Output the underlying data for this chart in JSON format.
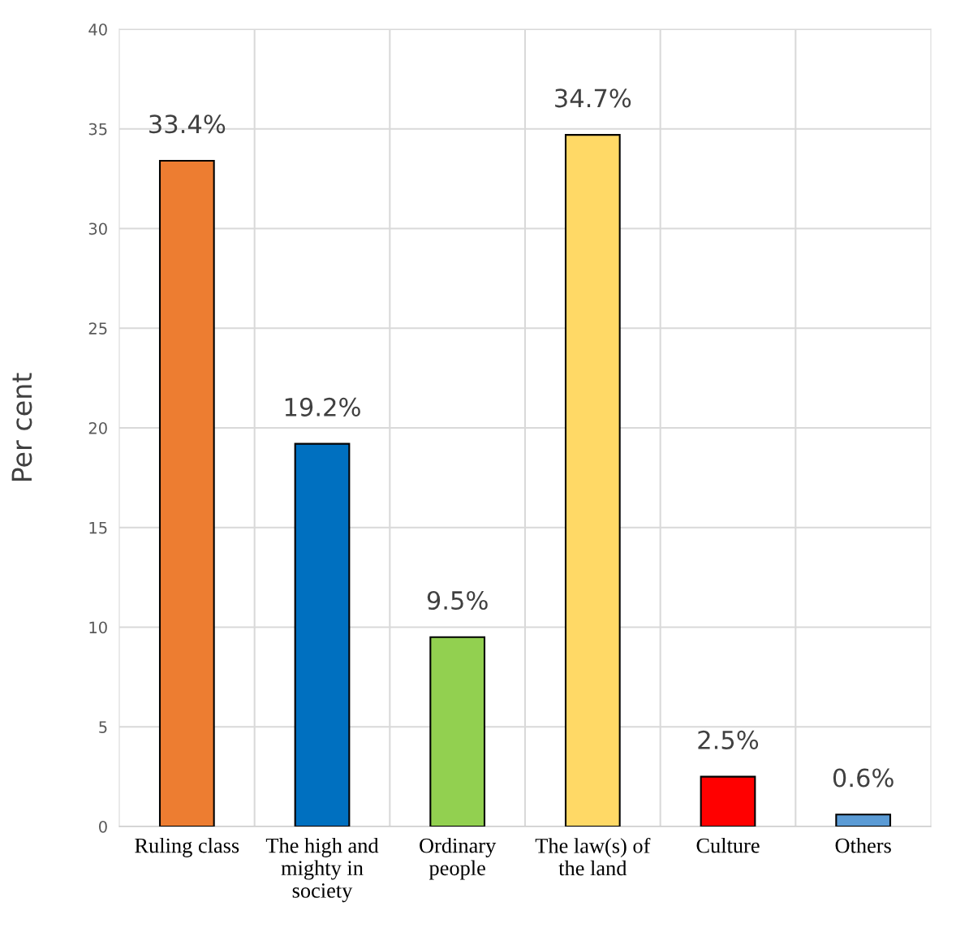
{
  "chart_data": {
    "type": "bar",
    "ylabel": "Per cent",
    "categories": [
      "Ruling class",
      "The high and\nmighty in\nsociety",
      "Ordinary\npeople",
      "The law(s) of\nthe land",
      "Culture",
      "Others"
    ],
    "values": [
      33.4,
      19.2,
      9.5,
      34.7,
      2.5,
      0.6
    ],
    "colors": [
      "#ed7d31",
      "#0070c0",
      "#92d050",
      "#ffd966",
      "#ff0000",
      "#5b9bd5"
    ],
    "value_labels": [
      "33.4%",
      "19.2%",
      "9.5%",
      "34.7%",
      "2.5%",
      "0.6%"
    ],
    "ylim": [
      0,
      40
    ],
    "yticks": [
      0,
      5,
      10,
      15,
      20,
      25,
      30,
      35,
      40
    ],
    "grid": true
  }
}
